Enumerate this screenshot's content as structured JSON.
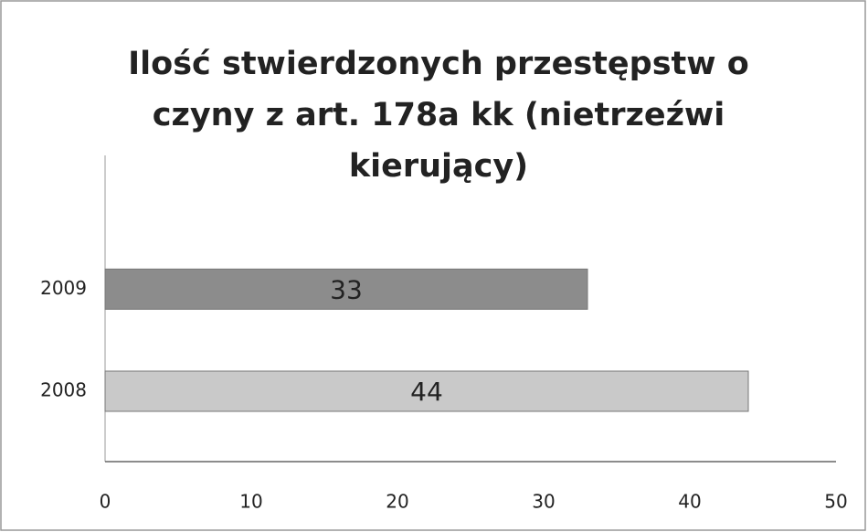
{
  "chart_data": {
    "type": "barh",
    "title": "Ilość stwierdzonych przestępstw o czyny z art. 178a kk (nietrzeźwi kierujący)",
    "categories": [
      "2008",
      "2009"
    ],
    "values": [
      44,
      33
    ],
    "colors": [
      "#c9c9c9",
      "#8c8c8c"
    ],
    "xlim": [
      0,
      50
    ],
    "xticks": [
      0,
      10,
      20,
      30,
      40,
      50
    ],
    "grid": false
  }
}
